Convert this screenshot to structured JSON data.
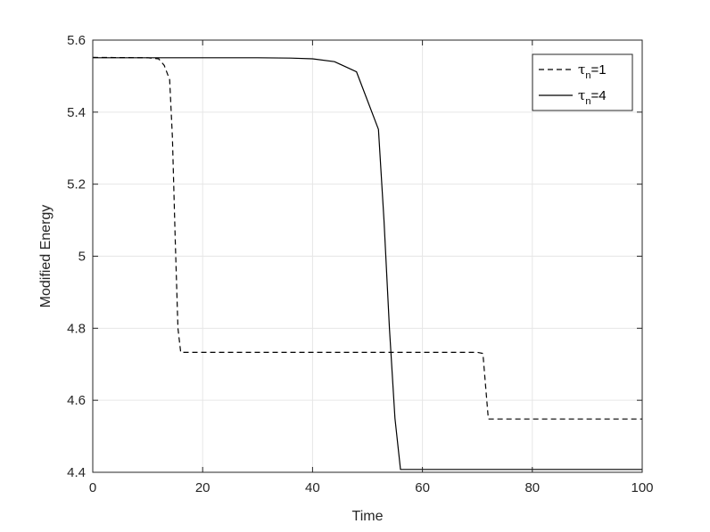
{
  "chart_data": {
    "type": "line",
    "xlabel": "Time",
    "ylabel": "Modified Energy",
    "xlim": [
      0,
      100
    ],
    "ylim": [
      4.4,
      5.6
    ],
    "xticks": [
      "0",
      "20",
      "40",
      "60",
      "80",
      "100"
    ],
    "yticks": [
      "4.4",
      "4.6",
      "4.8",
      "5",
      "5.2",
      "5.4",
      "5.6"
    ],
    "grid": true,
    "legend_position": "top-right",
    "series": [
      {
        "name": "τn=1",
        "legend_symbol": "τ",
        "legend_subscript": "n",
        "legend_suffix": "=1",
        "line_style": "dashed",
        "color": "#000000",
        "x": [
          0,
          10,
          12,
          13,
          14,
          14.5,
          15,
          15.5,
          16,
          20,
          30,
          40,
          50,
          60,
          70,
          71,
          71.5,
          72,
          80,
          90,
          100
        ],
        "y": [
          5.552,
          5.551,
          5.548,
          5.53,
          5.49,
          5.33,
          5.05,
          4.8,
          4.733,
          4.733,
          4.733,
          4.733,
          4.733,
          4.733,
          4.733,
          4.73,
          4.64,
          4.548,
          4.548,
          4.548,
          4.548
        ]
      },
      {
        "name": "τn=4",
        "legend_symbol": "τ",
        "legend_subscript": "n",
        "legend_suffix": "=4",
        "line_style": "solid",
        "color": "#000000",
        "x": [
          0,
          10,
          20,
          30,
          36,
          40,
          44,
          48,
          52,
          53,
          54,
          55,
          56,
          60,
          70,
          80,
          90,
          100
        ],
        "y": [
          5.551,
          5.551,
          5.551,
          5.551,
          5.55,
          5.548,
          5.54,
          5.512,
          5.352,
          5.1,
          4.8,
          4.55,
          4.408,
          4.408,
          4.408,
          4.408,
          4.408,
          4.408
        ]
      }
    ]
  }
}
